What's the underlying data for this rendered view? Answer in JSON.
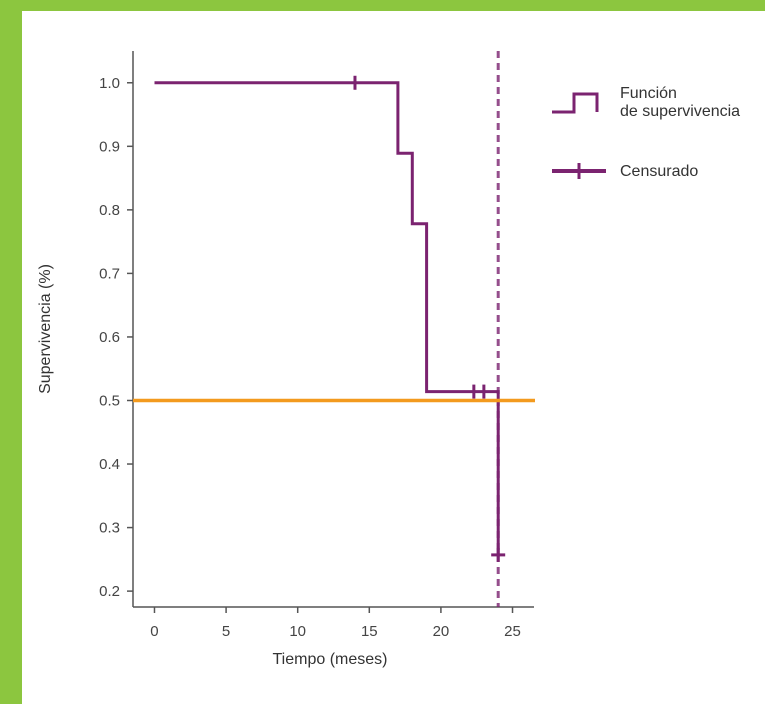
{
  "colors": {
    "frame": "#8cc63f",
    "survival": "#7b2370",
    "median_line": "#f39a1e",
    "axis": "#555555"
  },
  "chart_data": {
    "type": "line",
    "step": true,
    "xlabel": "Tiempo (meses)",
    "ylabel": "Supervivencia (%)",
    "xlim": [
      -1.5,
      26.5
    ],
    "ylim": [
      0.175,
      1.05
    ],
    "xticks": [
      0,
      5,
      10,
      15,
      20,
      25
    ],
    "yticks": [
      0.2,
      0.3,
      0.4,
      0.5,
      0.6,
      0.7,
      0.8,
      0.9,
      1.0
    ],
    "ytick_labels": [
      "0.2",
      "0.3",
      "0.4",
      "0.5",
      "0.6",
      "0.7",
      "0.8",
      "0.9",
      "1.0"
    ],
    "series": [
      {
        "name": "Función de supervivencia",
        "x": [
          0,
          17,
          17,
          18,
          18,
          19,
          19,
          24,
          24
        ],
        "y": [
          1.0,
          1.0,
          0.889,
          0.889,
          0.778,
          0.778,
          0.514,
          0.514,
          0.257
        ]
      }
    ],
    "censored": {
      "name": "Censurado",
      "points": [
        {
          "x": 14,
          "y": 1.0
        },
        {
          "x": 22.3,
          "y": 0.514
        },
        {
          "x": 23,
          "y": 0.514
        },
        {
          "x": 24,
          "y": 0.257
        }
      ]
    },
    "median_line": {
      "y": 0.5
    },
    "vertical_dashed_line": {
      "x": 24
    },
    "legend": {
      "position": "top-right",
      "entries": [
        {
          "line1": "Función",
          "line2": "de supervivencia"
        },
        {
          "line1": "Censurado"
        }
      ]
    }
  }
}
